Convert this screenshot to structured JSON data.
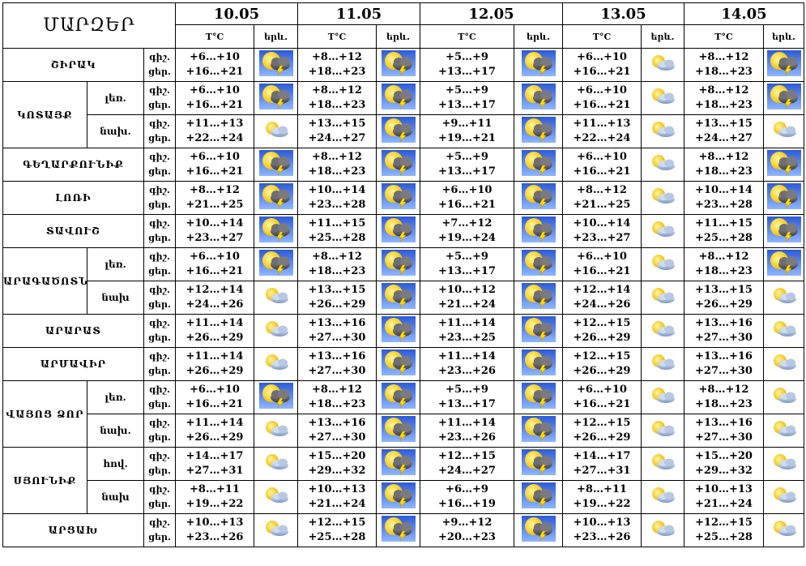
{
  "header": {
    "regions_title": "ՄԱՐԶԵՐ",
    "temp_label": "T°C",
    "icon_label": "երև.",
    "dates": [
      "10.05",
      "11.05",
      "12.05",
      "13.05",
      "14.05"
    ]
  },
  "time_labels": {
    "night": "գիշ.",
    "day": "ցեր."
  },
  "rows": [
    {
      "region": "ՇԻՐԱԿ",
      "rowspan": 1,
      "sub": "",
      "tl2": "ցեր.",
      "days": [
        {
          "n": "+6…+10",
          "d": "+16…+21",
          "icon": "thunder-icon"
        },
        {
          "n": "+8…+12",
          "d": "+18…+23",
          "icon": "thunder-icon"
        },
        {
          "n": "+5…+9",
          "d": "+13…+17",
          "icon": "thunder-icon"
        },
        {
          "n": "+6…+10",
          "d": "+16…+21",
          "icon": "partly-cloudy-icon"
        },
        {
          "n": "+8…+12",
          "d": "+18…+23",
          "icon": "thunder-icon"
        }
      ]
    },
    {
      "region": "ԿՈՏԱՅՔ",
      "rowspan": 2,
      "sub": "լեռ.",
      "tl2": "ցեր.",
      "days": [
        {
          "n": "+6…+10",
          "d": "+16…+21",
          "icon": "thunder-icon"
        },
        {
          "n": "+8…+12",
          "d": "+18…+23",
          "icon": "thunder-icon"
        },
        {
          "n": "+5…+9",
          "d": "+13…+17",
          "icon": "thunder-icon"
        },
        {
          "n": "+6…+10",
          "d": "+16…+21",
          "icon": "partly-cloudy-icon"
        },
        {
          "n": "+8…+12",
          "d": "+18…+23",
          "icon": "thunder-icon"
        }
      ]
    },
    {
      "region": "",
      "rowspan": 0,
      "sub": "նախ.",
      "tl2": "ցեր.",
      "days": [
        {
          "n": "+11…+13",
          "d": "+22…+24",
          "icon": "partly-cloudy-icon"
        },
        {
          "n": "+13…+15",
          "d": "+24…+27",
          "icon": "thunder-icon"
        },
        {
          "n": "+9…+11",
          "d": "+19…+21",
          "icon": "thunder-icon"
        },
        {
          "n": "+11…+13",
          "d": "+22…+24",
          "icon": "partly-cloudy-icon"
        },
        {
          "n": "+13…+15",
          "d": "+24…+27",
          "icon": "partly-cloudy-icon"
        }
      ]
    },
    {
      "region": "ԳԵՂԱՐՔՈՒՆԻՔ",
      "rowspan": 1,
      "sub": "",
      "tl2": "ցեր.",
      "days": [
        {
          "n": "+6…+10",
          "d": "+16…+21",
          "icon": "thunder-icon"
        },
        {
          "n": "+8…+12",
          "d": "+18…+23",
          "icon": "thunder-icon"
        },
        {
          "n": "+5…+9",
          "d": "+13…+17",
          "icon": "thunder-icon"
        },
        {
          "n": "+6…+10",
          "d": "+16…+21",
          "icon": "partly-cloudy-icon"
        },
        {
          "n": "+8…+12",
          "d": "+18…+23",
          "icon": "thunder-icon"
        }
      ]
    },
    {
      "region": "ԼՈՌԻ",
      "rowspan": 1,
      "sub": "",
      "tl2": "ցեր.",
      "days": [
        {
          "n": "+8…+12",
          "d": "+21…+25",
          "icon": "thunder-icon"
        },
        {
          "n": "+10…+14",
          "d": "+23…+28",
          "icon": "thunder-icon"
        },
        {
          "n": "+6…+10",
          "d": "+16…+21",
          "icon": "thunder-icon"
        },
        {
          "n": "+8…+12",
          "d": "+21…+25",
          "icon": "partly-cloudy-icon"
        },
        {
          "n": "+10…+14",
          "d": "+23…+28",
          "icon": "thunder-icon"
        }
      ]
    },
    {
      "region": "ՏԱՎՈՒՇ",
      "rowspan": 1,
      "sub": "",
      "tl2": "ցեր.",
      "days": [
        {
          "n": "+10…+14",
          "d": "+23…+27",
          "icon": "thunder-icon"
        },
        {
          "n": "+11…+15",
          "d": "+25…+28",
          "icon": "thunder-icon"
        },
        {
          "n": "+7…+12",
          "d": "+19…+24",
          "icon": "thunder-icon"
        },
        {
          "n": "+10…+14",
          "d": "+23…+27",
          "icon": "partly-cloudy-icon"
        },
        {
          "n": "+11…+15",
          "d": "+25…+28",
          "icon": "thunder-icon"
        }
      ]
    },
    {
      "region": "ԱՐԱԳԱԾՈՏՆ",
      "rowspan": 2,
      "sub": "լեռ.",
      "tl2": "ցեր.",
      "days": [
        {
          "n": "+6…+10",
          "d": "+16…+21",
          "icon": "thunder-icon"
        },
        {
          "n": "+8…+12",
          "d": "+18…+23",
          "icon": "thunder-icon"
        },
        {
          "n": "+5…+9",
          "d": "+13…+17",
          "icon": "thunder-icon"
        },
        {
          "n": "+6…+10",
          "d": "+16…+21",
          "icon": "partly-cloudy-icon"
        },
        {
          "n": "+8…+12",
          "d": "+18…+23",
          "icon": "thunder-icon"
        }
      ]
    },
    {
      "region": "",
      "rowspan": 0,
      "sub": "նախ",
      "tl2": "ցեր.",
      "days": [
        {
          "n": "+12…+14",
          "d": "+24…+26",
          "icon": "partly-cloudy-icon"
        },
        {
          "n": "+13…+15",
          "d": "+26…+29",
          "icon": "thunder-icon"
        },
        {
          "n": "+10…+12",
          "d": "+21…+24",
          "icon": "thunder-icon"
        },
        {
          "n": "+12…+14",
          "d": "+24…+26",
          "icon": "partly-cloudy-icon"
        },
        {
          "n": "+13…+15",
          "d": "+26…+29",
          "icon": "partly-cloudy-icon"
        }
      ]
    },
    {
      "region": "ԱՐԱՐԱՏ",
      "rowspan": 1,
      "sub": "",
      "tl2": "ցեր.",
      "days": [
        {
          "n": "+11…+14",
          "d": "+26…+29",
          "icon": "partly-cloudy-icon"
        },
        {
          "n": "+13…+16",
          "d": "+27…+30",
          "icon": "thunder-icon"
        },
        {
          "n": "+11…+14",
          "d": "+23…+25",
          "icon": "thunder-icon"
        },
        {
          "n": "+12…+15",
          "d": "+26…+29",
          "icon": "partly-cloudy-icon"
        },
        {
          "n": "+13…+16",
          "d": "+27…+30",
          "icon": "partly-cloudy-icon"
        }
      ]
    },
    {
      "region": "ԱՐՄԱՎԻՐ",
      "rowspan": 1,
      "sub": "",
      "tl2": "ցեր.",
      "days": [
        {
          "n": "+11…+14",
          "d": "+26…+29",
          "icon": "partly-cloudy-icon"
        },
        {
          "n": "+13…+16",
          "d": "+27…+30",
          "icon": "thunder-icon"
        },
        {
          "n": "+11…+14",
          "d": "+23…+26",
          "icon": "thunder-icon"
        },
        {
          "n": "+12…+15",
          "d": "+26…+29",
          "icon": "partly-cloudy-icon"
        },
        {
          "n": "+13…+16",
          "d": "+27…+30",
          "icon": "partly-cloudy-icon"
        }
      ]
    },
    {
      "region": "ՎԱՅՈՑ ՁՈՐ",
      "rowspan": 2,
      "sub": "լեռ.",
      "tl2": "ցեր.",
      "days": [
        {
          "n": "+6…+10",
          "d": "+16…+21",
          "icon": "thunder-icon"
        },
        {
          "n": "+8…+12",
          "d": "+18…+23",
          "icon": "thunder-icon"
        },
        {
          "n": "+5…+9",
          "d": "+13…+17",
          "icon": "thunder-icon"
        },
        {
          "n": "+6…+10",
          "d": "+16…+21",
          "icon": "partly-cloudy-icon"
        },
        {
          "n": "+8…+12",
          "d": "+18…+23",
          "icon": "partly-cloudy-icon"
        }
      ]
    },
    {
      "region": "",
      "rowspan": 0,
      "sub": "նախ.",
      "tl2": "ցեր.",
      "days": [
        {
          "n": "+11…+14",
          "d": "+26…+29",
          "icon": "partly-cloudy-icon"
        },
        {
          "n": "+13…+16",
          "d": "+27…+30",
          "icon": "thunder-icon"
        },
        {
          "n": "+11…+14",
          "d": "+23…+26",
          "icon": "thunder-icon"
        },
        {
          "n": "+12…+15",
          "d": "+26…+29",
          "icon": "partly-cloudy-icon"
        },
        {
          "n": "+13…+16",
          "d": "+27…+30",
          "icon": "partly-cloudy-icon"
        }
      ]
    },
    {
      "region": "ՍՅՈՒՆԻՔ",
      "rowspan": 2,
      "sub": "հով.",
      "tl2": "ցեր.",
      "days": [
        {
          "n": "+14…+17",
          "d": "+27…+31",
          "icon": "partly-cloudy-icon"
        },
        {
          "n": "+15…+20",
          "d": "+29…+32",
          "icon": "thunder-icon"
        },
        {
          "n": "+12…+15",
          "d": "+24…+27",
          "icon": "thunder-icon"
        },
        {
          "n": "+14…+17",
          "d": "+27…+31",
          "icon": "partly-cloudy-icon"
        },
        {
          "n": "+15…+20",
          "d": "+29…+32",
          "icon": "partly-cloudy-icon"
        }
      ]
    },
    {
      "region": "",
      "rowspan": 0,
      "sub": "նախ",
      "tl2": "ցեր.",
      "days": [
        {
          "n": "+8…+11",
          "d": "+19…+22",
          "icon": "partly-cloudy-icon"
        },
        {
          "n": "+10…+13",
          "d": "+21…+24",
          "icon": "thunder-icon"
        },
        {
          "n": "+6…+9",
          "d": "+16…+19",
          "icon": "thunder-icon"
        },
        {
          "n": "+8…+11",
          "d": "+19…+22",
          "icon": "partly-cloudy-icon"
        },
        {
          "n": "+10…+13",
          "d": "+21…+24",
          "icon": "partly-cloudy-icon"
        }
      ]
    },
    {
      "region": "ԱՐՑԱԽ",
      "rowspan": 1,
      "sub": "",
      "tl2": "ցեր.",
      "days": [
        {
          "n": "+10…+13",
          "d": "+23…+26",
          "icon": "partly-cloudy-icon"
        },
        {
          "n": "+12…+15",
          "d": "+25…+28",
          "icon": "thunder-icon"
        },
        {
          "n": "+9…+12",
          "d": "+20…+23",
          "icon": "thunder-icon"
        },
        {
          "n": "+10…+13",
          "d": "+23…+26",
          "icon": "partly-cloudy-icon"
        },
        {
          "n": "+12…+15",
          "d": "+25…+28",
          "icon": "partly-cloudy-icon"
        }
      ]
    }
  ]
}
